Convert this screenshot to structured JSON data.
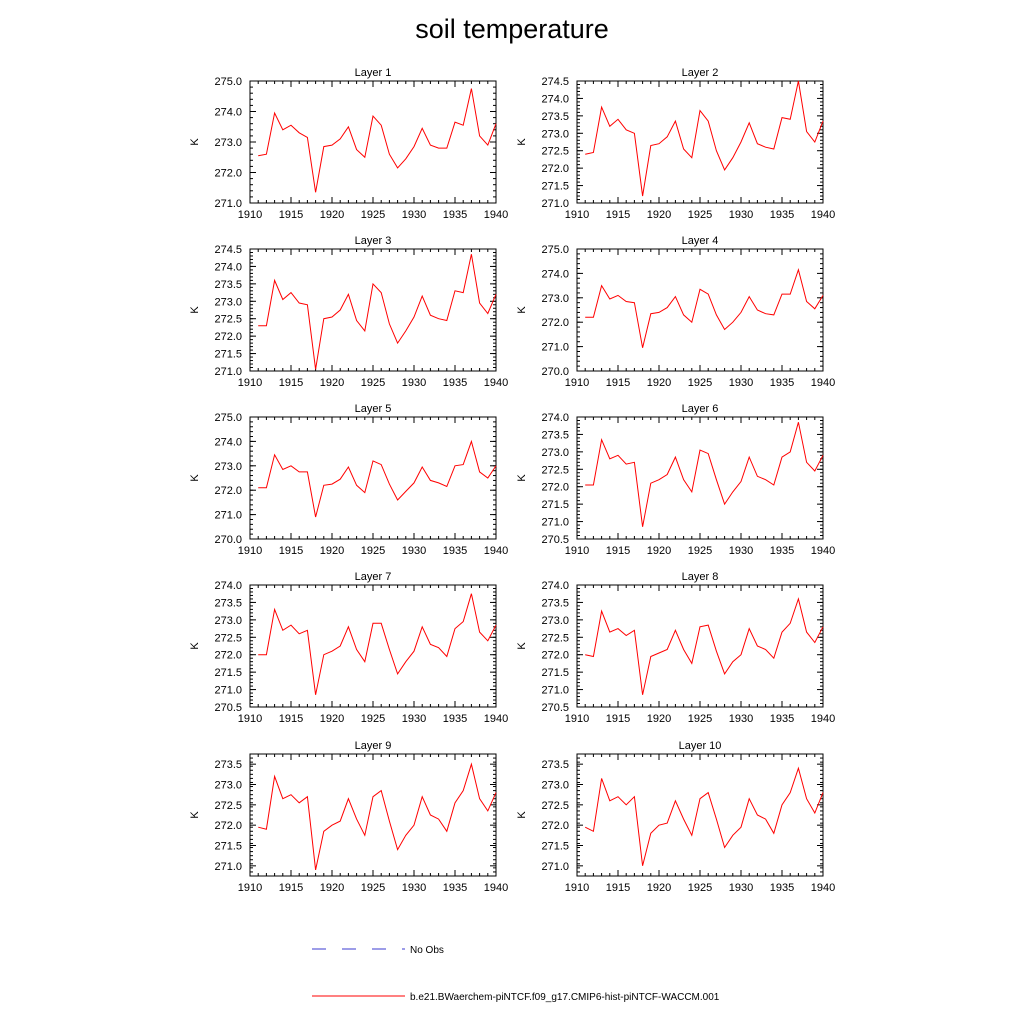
{
  "title": "soil temperature",
  "colors": {
    "series": "#ff0000",
    "no_obs": "#3b3bd0"
  },
  "legend": {
    "no_obs_label": "No Obs",
    "model_label": "b.e21.BWaerchem-piNTCF.f09_g17.CMIP6-hist-piNTCF-WACCM.001"
  },
  "chart_data": [
    {
      "type": "line",
      "title": "Layer 1",
      "ylabel": "K",
      "xlabel": "",
      "xlim": [
        1910,
        1940
      ],
      "ylim": [
        271.0,
        275.0
      ],
      "xticks": [
        1910,
        1915,
        1920,
        1925,
        1930,
        1935,
        1940
      ],
      "yticks": [
        "271.0",
        "272.0",
        "273.0",
        "274.0",
        "275.0"
      ],
      "x": [
        1911,
        1912,
        1913,
        1914,
        1915,
        1916,
        1917,
        1918,
        1919,
        1920,
        1921,
        1922,
        1923,
        1924,
        1925,
        1926,
        1927,
        1928,
        1929,
        1930,
        1931,
        1932,
        1933,
        1934,
        1935,
        1936,
        1937,
        1938,
        1939,
        1940
      ],
      "series": [
        {
          "values": [
            272.55,
            272.6,
            273.95,
            273.4,
            273.55,
            273.3,
            273.15,
            271.35,
            272.85,
            272.9,
            273.1,
            273.5,
            272.75,
            272.5,
            273.85,
            273.55,
            272.6,
            272.15,
            272.45,
            272.85,
            273.45,
            272.9,
            272.8,
            272.8,
            273.65,
            273.55,
            274.75,
            273.2,
            272.9,
            273.6
          ]
        }
      ]
    },
    {
      "type": "line",
      "title": "Layer 2",
      "ylabel": "K",
      "xlabel": "",
      "xlim": [
        1910,
        1940
      ],
      "ylim": [
        271.0,
        274.5
      ],
      "xticks": [
        1910,
        1915,
        1920,
        1925,
        1930,
        1935,
        1940
      ],
      "yticks": [
        "271.0",
        "271.5",
        "272.0",
        "272.5",
        "273.0",
        "273.5",
        "274.0",
        "274.5"
      ],
      "x": [
        1911,
        1912,
        1913,
        1914,
        1915,
        1916,
        1917,
        1918,
        1919,
        1920,
        1921,
        1922,
        1923,
        1924,
        1925,
        1926,
        1927,
        1928,
        1929,
        1930,
        1931,
        1932,
        1933,
        1934,
        1935,
        1936,
        1937,
        1938,
        1939,
        1940
      ],
      "series": [
        {
          "values": [
            272.4,
            272.45,
            273.75,
            273.2,
            273.4,
            273.1,
            273.0,
            271.2,
            272.65,
            272.7,
            272.9,
            273.35,
            272.55,
            272.3,
            273.65,
            273.35,
            272.5,
            271.95,
            272.3,
            272.75,
            273.3,
            272.7,
            272.6,
            272.55,
            273.45,
            273.4,
            274.5,
            273.05,
            272.75,
            273.35
          ]
        }
      ]
    },
    {
      "type": "line",
      "title": "Layer 3",
      "ylabel": "K",
      "xlabel": "",
      "xlim": [
        1910,
        1940
      ],
      "ylim": [
        271.0,
        274.5
      ],
      "xticks": [
        1910,
        1915,
        1920,
        1925,
        1930,
        1935,
        1940
      ],
      "yticks": [
        "271.0",
        "271.5",
        "272.0",
        "272.5",
        "273.0",
        "273.5",
        "274.0",
        "274.5"
      ],
      "x": [
        1911,
        1912,
        1913,
        1914,
        1915,
        1916,
        1917,
        1918,
        1919,
        1920,
        1921,
        1922,
        1923,
        1924,
        1925,
        1926,
        1927,
        1928,
        1929,
        1930,
        1931,
        1932,
        1933,
        1934,
        1935,
        1936,
        1937,
        1938,
        1939,
        1940
      ],
      "series": [
        {
          "values": [
            272.3,
            272.3,
            273.6,
            273.05,
            273.25,
            272.95,
            272.9,
            271.05,
            272.5,
            272.55,
            272.75,
            273.2,
            272.45,
            272.15,
            273.5,
            273.25,
            272.35,
            271.8,
            272.15,
            272.55,
            273.15,
            272.6,
            272.5,
            272.45,
            273.3,
            273.25,
            274.35,
            272.95,
            272.65,
            273.2
          ]
        }
      ]
    },
    {
      "type": "line",
      "title": "Layer 4",
      "ylabel": "K",
      "xlabel": "",
      "xlim": [
        1910,
        1940
      ],
      "ylim": [
        270.0,
        275.0
      ],
      "xticks": [
        1910,
        1915,
        1920,
        1925,
        1930,
        1935,
        1940
      ],
      "yticks": [
        "270.0",
        "271.0",
        "272.0",
        "273.0",
        "274.0",
        "275.0"
      ],
      "x": [
        1911,
        1912,
        1913,
        1914,
        1915,
        1916,
        1917,
        1918,
        1919,
        1920,
        1921,
        1922,
        1923,
        1924,
        1925,
        1926,
        1927,
        1928,
        1929,
        1930,
        1931,
        1932,
        1933,
        1934,
        1935,
        1936,
        1937,
        1938,
        1939,
        1940
      ],
      "series": [
        {
          "values": [
            272.2,
            272.2,
            273.5,
            272.95,
            273.1,
            272.85,
            272.8,
            270.95,
            272.35,
            272.4,
            272.6,
            273.05,
            272.3,
            272.0,
            273.35,
            273.15,
            272.3,
            271.7,
            272.0,
            272.4,
            273.05,
            272.5,
            272.35,
            272.3,
            273.15,
            273.15,
            274.15,
            272.85,
            272.55,
            273.1
          ]
        }
      ]
    },
    {
      "type": "line",
      "title": "Layer 5",
      "ylabel": "K",
      "xlabel": "",
      "xlim": [
        1910,
        1940
      ],
      "ylim": [
        270.0,
        275.0
      ],
      "xticks": [
        1910,
        1915,
        1920,
        1925,
        1930,
        1935,
        1940
      ],
      "yticks": [
        "270.0",
        "271.0",
        "272.0",
        "273.0",
        "274.0",
        "275.0"
      ],
      "x": [
        1911,
        1912,
        1913,
        1914,
        1915,
        1916,
        1917,
        1918,
        1919,
        1920,
        1921,
        1922,
        1923,
        1924,
        1925,
        1926,
        1927,
        1928,
        1929,
        1930,
        1931,
        1932,
        1933,
        1934,
        1935,
        1936,
        1937,
        1938,
        1939,
        1940
      ],
      "series": [
        {
          "values": [
            272.1,
            272.1,
            273.45,
            272.85,
            273.0,
            272.75,
            272.75,
            270.9,
            272.2,
            272.25,
            272.45,
            272.95,
            272.2,
            271.9,
            273.2,
            273.05,
            272.25,
            271.6,
            271.95,
            272.3,
            272.95,
            272.4,
            272.3,
            272.15,
            273.0,
            273.05,
            274.0,
            272.75,
            272.5,
            273.0
          ]
        }
      ]
    },
    {
      "type": "line",
      "title": "Layer 6",
      "ylabel": "K",
      "xlabel": "",
      "xlim": [
        1910,
        1940
      ],
      "ylim": [
        270.5,
        274.0
      ],
      "xticks": [
        1910,
        1915,
        1920,
        1925,
        1930,
        1935,
        1940
      ],
      "yticks": [
        "270.5",
        "271.0",
        "271.5",
        "272.0",
        "272.5",
        "273.0",
        "273.5",
        "274.0"
      ],
      "x": [
        1911,
        1912,
        1913,
        1914,
        1915,
        1916,
        1917,
        1918,
        1919,
        1920,
        1921,
        1922,
        1923,
        1924,
        1925,
        1926,
        1927,
        1928,
        1929,
        1930,
        1931,
        1932,
        1933,
        1934,
        1935,
        1936,
        1937,
        1938,
        1939,
        1940
      ],
      "series": [
        {
          "values": [
            272.05,
            272.05,
            273.35,
            272.8,
            272.9,
            272.65,
            272.7,
            270.85,
            272.1,
            272.2,
            272.35,
            272.85,
            272.2,
            271.85,
            273.05,
            272.95,
            272.2,
            271.5,
            271.85,
            272.15,
            272.85,
            272.3,
            272.2,
            272.05,
            272.85,
            273.0,
            273.85,
            272.7,
            272.45,
            272.9
          ]
        }
      ]
    },
    {
      "type": "line",
      "title": "Layer 7",
      "ylabel": "K",
      "xlabel": "",
      "xlim": [
        1910,
        1940
      ],
      "ylim": [
        270.5,
        274.0
      ],
      "xticks": [
        1910,
        1915,
        1920,
        1925,
        1930,
        1935,
        1940
      ],
      "yticks": [
        "270.5",
        "271.0",
        "271.5",
        "272.0",
        "272.5",
        "273.0",
        "273.5",
        "274.0"
      ],
      "x": [
        1911,
        1912,
        1913,
        1914,
        1915,
        1916,
        1917,
        1918,
        1919,
        1920,
        1921,
        1922,
        1923,
        1924,
        1925,
        1926,
        1927,
        1928,
        1929,
        1930,
        1931,
        1932,
        1933,
        1934,
        1935,
        1936,
        1937,
        1938,
        1939,
        1940
      ],
      "series": [
        {
          "values": [
            272.0,
            272.0,
            273.3,
            272.7,
            272.85,
            272.6,
            272.7,
            270.85,
            272.0,
            272.1,
            272.25,
            272.8,
            272.15,
            271.8,
            272.9,
            272.9,
            272.15,
            271.45,
            271.8,
            272.1,
            272.8,
            272.3,
            272.2,
            271.95,
            272.75,
            272.95,
            273.75,
            272.65,
            272.4,
            272.85
          ]
        }
      ]
    },
    {
      "type": "line",
      "title": "Layer 8",
      "ylabel": "K",
      "xlabel": "",
      "xlim": [
        1910,
        1940
      ],
      "ylim": [
        270.5,
        274.0
      ],
      "xticks": [
        1910,
        1915,
        1920,
        1925,
        1930,
        1935,
        1940
      ],
      "yticks": [
        "270.5",
        "271.0",
        "271.5",
        "272.0",
        "272.5",
        "273.0",
        "273.5",
        "274.0"
      ],
      "x": [
        1911,
        1912,
        1913,
        1914,
        1915,
        1916,
        1917,
        1918,
        1919,
        1920,
        1921,
        1922,
        1923,
        1924,
        1925,
        1926,
        1927,
        1928,
        1929,
        1930,
        1931,
        1932,
        1933,
        1934,
        1935,
        1936,
        1937,
        1938,
        1939,
        1940
      ],
      "series": [
        {
          "values": [
            272.0,
            271.95,
            273.25,
            272.65,
            272.75,
            272.55,
            272.7,
            270.85,
            271.95,
            272.05,
            272.15,
            272.7,
            272.15,
            271.75,
            272.8,
            272.85,
            272.1,
            271.45,
            271.8,
            272.0,
            272.75,
            272.25,
            272.15,
            271.9,
            272.65,
            272.9,
            273.6,
            272.65,
            272.35,
            272.8
          ]
        }
      ]
    },
    {
      "type": "line",
      "title": "Layer 9",
      "ylabel": "K",
      "xlabel": "",
      "xlim": [
        1910,
        1940
      ],
      "ylim": [
        270.75,
        273.75
      ],
      "xticks": [
        1910,
        1915,
        1920,
        1925,
        1930,
        1935,
        1940
      ],
      "yticks": [
        "271.0",
        "271.5",
        "272.0",
        "272.5",
        "273.0",
        "273.5"
      ],
      "x": [
        1911,
        1912,
        1913,
        1914,
        1915,
        1916,
        1917,
        1918,
        1919,
        1920,
        1921,
        1922,
        1923,
        1924,
        1925,
        1926,
        1927,
        1928,
        1929,
        1930,
        1931,
        1932,
        1933,
        1934,
        1935,
        1936,
        1937,
        1938,
        1939,
        1940
      ],
      "series": [
        {
          "values": [
            271.95,
            271.9,
            273.2,
            272.65,
            272.75,
            272.55,
            272.7,
            270.9,
            271.85,
            272.0,
            272.1,
            272.65,
            272.15,
            271.75,
            272.7,
            272.85,
            272.1,
            271.4,
            271.75,
            272.0,
            272.7,
            272.25,
            272.15,
            271.85,
            272.55,
            272.85,
            273.5,
            272.65,
            272.35,
            272.8
          ]
        }
      ]
    },
    {
      "type": "line",
      "title": "Layer 10",
      "ylabel": "K",
      "xlabel": "",
      "xlim": [
        1910,
        1940
      ],
      "ylim": [
        270.75,
        273.75
      ],
      "xticks": [
        1910,
        1915,
        1920,
        1925,
        1930,
        1935,
        1940
      ],
      "yticks": [
        "271.0",
        "271.5",
        "272.0",
        "272.5",
        "273.0",
        "273.5"
      ],
      "x": [
        1911,
        1912,
        1913,
        1914,
        1915,
        1916,
        1917,
        1918,
        1919,
        1920,
        1921,
        1922,
        1923,
        1924,
        1925,
        1926,
        1927,
        1928,
        1929,
        1930,
        1931,
        1932,
        1933,
        1934,
        1935,
        1936,
        1937,
        1938,
        1939,
        1940
      ],
      "series": [
        {
          "values": [
            271.95,
            271.85,
            273.15,
            272.6,
            272.7,
            272.5,
            272.7,
            271.0,
            271.8,
            272.0,
            272.05,
            272.6,
            272.15,
            271.75,
            272.65,
            272.8,
            272.15,
            271.45,
            271.75,
            271.95,
            272.65,
            272.25,
            272.15,
            271.8,
            272.5,
            272.8,
            273.4,
            272.65,
            272.3,
            272.8
          ]
        }
      ]
    }
  ]
}
